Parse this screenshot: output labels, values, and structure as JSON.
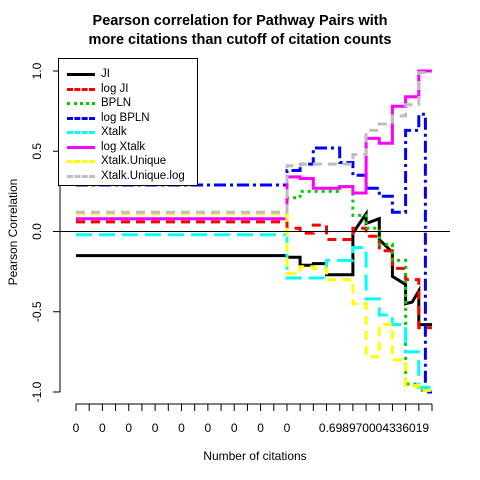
{
  "chart_data": {
    "type": "line",
    "title_lines": [
      "Pearson correlation for Pathway Pairs with",
      "more citations than cutoff of citation counts"
    ],
    "xlabel": "Number of citations",
    "ylabel": "Pearson Correlation",
    "ylim": [
      -1.0,
      1.0
    ],
    "xlim": [
      1,
      28
    ],
    "y_ticks": [
      1.0,
      0.5,
      0.0,
      -0.5,
      -1.0
    ],
    "y_tick_labels": [
      "1.0",
      "0.5",
      "0.0",
      "-0.5",
      "-1.0"
    ],
    "x_tick_positions": [
      1,
      2,
      3,
      4,
      5,
      6,
      7,
      8,
      9,
      10,
      11,
      12,
      13,
      14,
      15,
      16,
      17,
      18,
      19,
      20,
      21,
      22,
      23,
      24,
      25,
      26,
      27,
      28
    ],
    "x_tick_labels": [
      "0",
      "0",
      "0",
      "0",
      "0",
      "0",
      "0",
      "0",
      "0",
      "0.698970004336019"
    ],
    "x_tick_label_positions": [
      1,
      3,
      5,
      7,
      9,
      11,
      13,
      15,
      17,
      23.6
    ],
    "reference_line_y": 0,
    "legend_position": "top-left",
    "series": [
      {
        "name": "JI",
        "color": "#000000",
        "dash": "solid",
        "points": [
          [
            1,
            -0.15
          ],
          [
            17,
            -0.15
          ],
          [
            17,
            -0.16
          ],
          [
            18,
            -0.16
          ],
          [
            18,
            -0.21
          ],
          [
            19,
            -0.21
          ],
          [
            19,
            -0.2
          ],
          [
            20,
            -0.2
          ],
          [
            20,
            -0.27
          ],
          [
            22,
            -0.27
          ],
          [
            22,
            -0.01
          ],
          [
            23,
            0.11
          ],
          [
            23,
            0.05
          ],
          [
            24,
            0.08
          ],
          [
            24,
            -0.05
          ],
          [
            25,
            -0.13
          ],
          [
            25,
            -0.28
          ],
          [
            26,
            -0.33
          ],
          [
            26,
            -0.45
          ],
          [
            26.5,
            -0.44
          ],
          [
            27,
            -0.37
          ],
          [
            27,
            -0.58
          ],
          [
            28,
            -0.58
          ]
        ]
      },
      {
        "name": "log JI",
        "color": "#ff0000",
        "dash": "dashed",
        "points": [
          [
            1,
            0.06
          ],
          [
            17,
            0.06
          ],
          [
            17,
            0.02
          ],
          [
            18,
            0.02
          ],
          [
            18,
            -0.01
          ],
          [
            19,
            -0.01
          ],
          [
            19,
            0.04
          ],
          [
            20,
            0.04
          ],
          [
            20,
            -0.05
          ],
          [
            22,
            -0.05
          ],
          [
            22,
            0.02
          ],
          [
            23,
            0.02
          ],
          [
            23,
            -0.03
          ],
          [
            24,
            -0.03
          ],
          [
            24,
            -0.12
          ],
          [
            25,
            -0.12
          ],
          [
            25,
            -0.23
          ],
          [
            26,
            -0.23
          ],
          [
            26,
            -0.3
          ],
          [
            27,
            -0.3
          ],
          [
            27,
            -0.6
          ],
          [
            28,
            -0.6
          ]
        ]
      },
      {
        "name": "BPLN",
        "color": "#00cd00",
        "dash": "dotted",
        "points": [
          [
            1,
            0.08
          ],
          [
            17,
            0.08
          ],
          [
            17,
            0.21
          ],
          [
            18,
            0.21
          ],
          [
            18,
            0.25
          ],
          [
            21,
            0.25
          ],
          [
            21,
            0.28
          ],
          [
            22,
            0.28
          ],
          [
            22,
            0.1
          ],
          [
            23,
            0.1
          ],
          [
            23,
            0.02
          ],
          [
            24,
            0.02
          ],
          [
            24,
            -0.08
          ],
          [
            25,
            -0.08
          ],
          [
            25,
            -0.18
          ],
          [
            26,
            -0.18
          ],
          [
            26,
            -0.95
          ],
          [
            27,
            -0.95
          ],
          [
            27,
            -0.99
          ],
          [
            28,
            -0.99
          ]
        ]
      },
      {
        "name": "log BPLN",
        "color": "#0000ff",
        "dash": "dashdot",
        "points": [
          [
            1,
            0.29
          ],
          [
            17,
            0.29
          ],
          [
            17,
            0.38
          ],
          [
            18,
            0.38
          ],
          [
            18,
            0.42
          ],
          [
            19,
            0.42
          ],
          [
            19,
            0.52
          ],
          [
            21,
            0.52
          ],
          [
            21,
            0.43
          ],
          [
            22,
            0.43
          ],
          [
            22,
            0.35
          ],
          [
            23,
            0.35
          ],
          [
            23,
            0.27
          ],
          [
            24,
            0.27
          ],
          [
            24,
            0.22
          ],
          [
            25,
            0.22
          ],
          [
            25,
            0.12
          ],
          [
            26,
            0.12
          ],
          [
            26,
            0.63
          ],
          [
            27,
            0.63
          ],
          [
            27,
            0.73
          ],
          [
            27.5,
            0.73
          ],
          [
            27.5,
            -1.0
          ],
          [
            28,
            -1.0
          ]
        ]
      },
      {
        "name": "Xtalk",
        "color": "#00ffff",
        "dash": "longdash",
        "points": [
          [
            1,
            -0.02
          ],
          [
            17,
            -0.02
          ],
          [
            17,
            -0.29
          ],
          [
            20,
            -0.29
          ],
          [
            20,
            -0.18
          ],
          [
            22,
            -0.18
          ],
          [
            22,
            -0.1
          ],
          [
            23,
            -0.1
          ],
          [
            23,
            -0.42
          ],
          [
            24,
            -0.42
          ],
          [
            24,
            -0.52
          ],
          [
            25,
            -0.52
          ],
          [
            25,
            -0.58
          ],
          [
            26,
            -0.58
          ],
          [
            26,
            -0.75
          ],
          [
            27,
            -0.75
          ],
          [
            27,
            -0.97
          ],
          [
            28,
            -0.97
          ]
        ]
      },
      {
        "name": "log Xtalk",
        "color": "#ff00ff",
        "dash": "solid",
        "points": [
          [
            1,
            0.08
          ],
          [
            17,
            0.08
          ],
          [
            17,
            0.34
          ],
          [
            18,
            0.34
          ],
          [
            18,
            0.33
          ],
          [
            19,
            0.33
          ],
          [
            19,
            0.27
          ],
          [
            21,
            0.27
          ],
          [
            21,
            0.28
          ],
          [
            22,
            0.28
          ],
          [
            22,
            0.24
          ],
          [
            23,
            0.24
          ],
          [
            23,
            0.58
          ],
          [
            24,
            0.58
          ],
          [
            24,
            0.55
          ],
          [
            25,
            0.55
          ],
          [
            25,
            0.78
          ],
          [
            26,
            0.78
          ],
          [
            26,
            0.84
          ],
          [
            27,
            0.84
          ],
          [
            27,
            1.0
          ],
          [
            28,
            1.0
          ]
        ]
      },
      {
        "name": "Xtalk.Unique",
        "color": "#ffff00",
        "dash": "dashed",
        "points": [
          [
            1,
            0.11
          ],
          [
            17,
            0.11
          ],
          [
            17,
            -0.26
          ],
          [
            18,
            -0.26
          ],
          [
            18,
            -0.22
          ],
          [
            19,
            -0.22
          ],
          [
            19,
            -0.23
          ],
          [
            20,
            -0.23
          ],
          [
            20,
            -0.3
          ],
          [
            22,
            -0.3
          ],
          [
            22,
            -0.45
          ],
          [
            23,
            -0.45
          ],
          [
            23,
            -0.78
          ],
          [
            24,
            -0.78
          ],
          [
            24,
            -0.58
          ],
          [
            25,
            -0.58
          ],
          [
            25,
            -0.8
          ],
          [
            26,
            -0.8
          ],
          [
            26,
            -0.96
          ],
          [
            27,
            -0.96
          ],
          [
            27,
            -0.99
          ],
          [
            28,
            -0.99
          ]
        ]
      },
      {
        "name": "Xtalk.Unique.log",
        "color": "#bebebe",
        "dash": "dashed",
        "points": [
          [
            1,
            0.12
          ],
          [
            17,
            0.12
          ],
          [
            17,
            0.41
          ],
          [
            18,
            0.41
          ],
          [
            18,
            0.42
          ],
          [
            22,
            0.42
          ],
          [
            22,
            0.48
          ],
          [
            23,
            0.48
          ],
          [
            23,
            0.63
          ],
          [
            24,
            0.63
          ],
          [
            24,
            0.67
          ],
          [
            25,
            0.67
          ],
          [
            25,
            0.72
          ],
          [
            26,
            0.72
          ],
          [
            26,
            0.79
          ],
          [
            27,
            0.79
          ],
          [
            27,
            0.99
          ],
          [
            28,
            0.99
          ]
        ]
      }
    ]
  }
}
